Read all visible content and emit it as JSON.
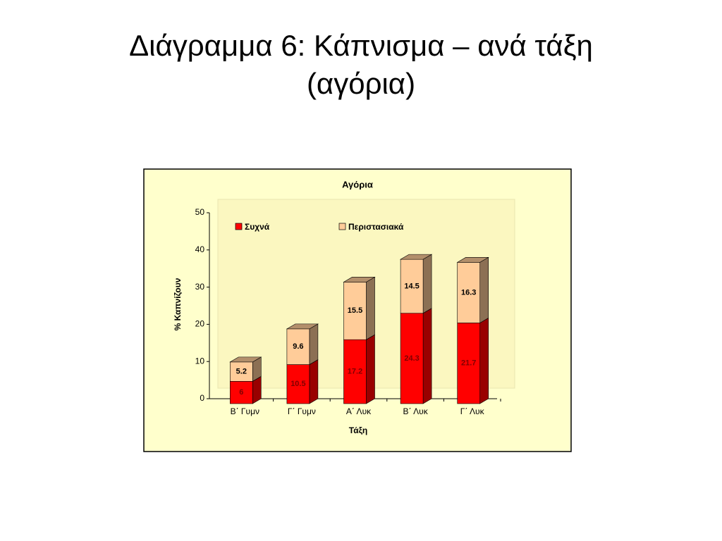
{
  "slide_title": "Διάγραμμα 6: Κάπνισμα – ανά τάξη (αγόρια)",
  "chart_data": {
    "type": "stacked-bar-3d",
    "title": "Αγόρια",
    "x_label": "Τάξη",
    "y_label": "% Καπνίζουν",
    "categories": [
      "Β΄ Γυμν",
      "Γ΄ Γυμν",
      "Α΄ Λυκ",
      "Β΄ Λυκ",
      "Γ΄ Λυκ"
    ],
    "series": [
      {
        "name": "Συχνά",
        "color": "#ff0000",
        "values": [
          6,
          10.5,
          17.2,
          24.3,
          21.7
        ]
      },
      {
        "name": "Περιστασιακά",
        "color": "#ffcc99",
        "values": [
          5.2,
          9.6,
          15.5,
          14.5,
          16.3
        ]
      }
    ],
    "ylim": [
      0,
      50
    ],
    "yticks": [
      0,
      10,
      20,
      30,
      40,
      50
    ],
    "grid": false,
    "legend": "top"
  }
}
